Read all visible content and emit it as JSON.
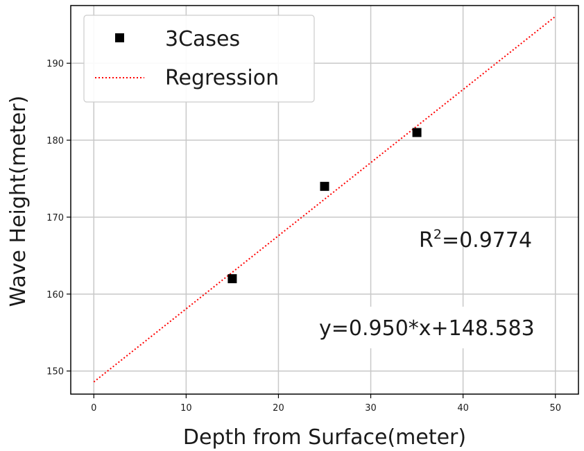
{
  "chart_data": {
    "type": "scatter",
    "xlabel": "Depth from Surface(meter)",
    "ylabel": "Wave Height(meter)",
    "xlim": [
      -2.5,
      52.5
    ],
    "ylim": [
      147,
      197.5
    ],
    "xticks": [
      "0",
      "10",
      "20",
      "30",
      "40",
      "50"
    ],
    "yticks": [
      "150",
      "160",
      "170",
      "180",
      "190"
    ],
    "grid": true,
    "legend_position": "top-left",
    "series": [
      {
        "name": "3Cases",
        "marker": "square",
        "color": "#000000",
        "points": [
          {
            "x": 15,
            "y": 162
          },
          {
            "x": 25,
            "y": 174
          },
          {
            "x": 35,
            "y": 181
          }
        ]
      },
      {
        "name": "Regression",
        "style": "dotted",
        "color": "#ff0000",
        "line": {
          "x": [
            0,
            50
          ],
          "slope": 0.95,
          "intercept": 148.583
        }
      }
    ],
    "annotations": {
      "r2_prefix": "R",
      "r2_sup": "2",
      "r2_value": "=0.9774",
      "equation": "y=0.950*x+148.583"
    }
  }
}
